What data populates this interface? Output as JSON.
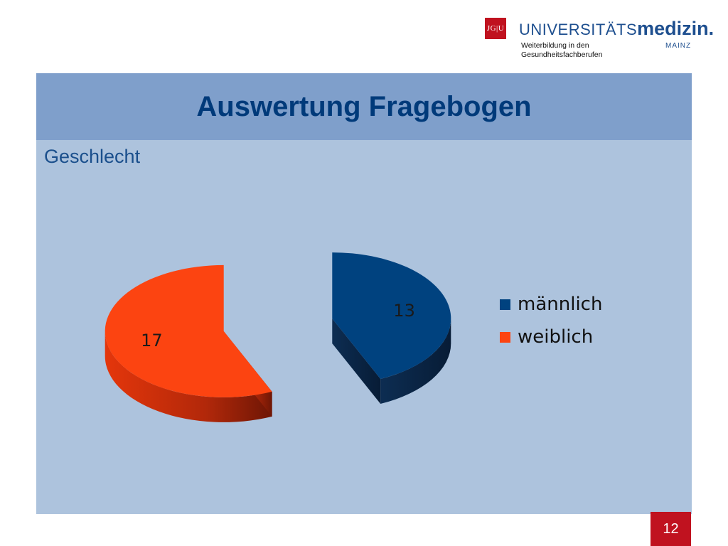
{
  "header": {
    "logo_text": "JG|U",
    "brand_prefix": "UNIVERSITÄTS",
    "brand_main": "medizin.",
    "brand_city": "MAINZ",
    "department": "Weiterbildung in den Gesundheitsfachberufen"
  },
  "slide": {
    "title": "Auswertung Fragebogen",
    "subtitle": "Geschlecht",
    "page_number": "12"
  },
  "colors": {
    "male": "#00427f",
    "female": "#fc4411",
    "title_bar": "#7f9fcb",
    "content_bg": "#adc3dd",
    "accent_red": "#c0121f"
  },
  "chart_data": {
    "type": "pie",
    "style": "3d-exploded",
    "categories": [
      "männlich",
      "weiblich"
    ],
    "values": [
      13,
      17
    ],
    "data_labels": [
      "13",
      "17"
    ],
    "legend_position": "right"
  }
}
